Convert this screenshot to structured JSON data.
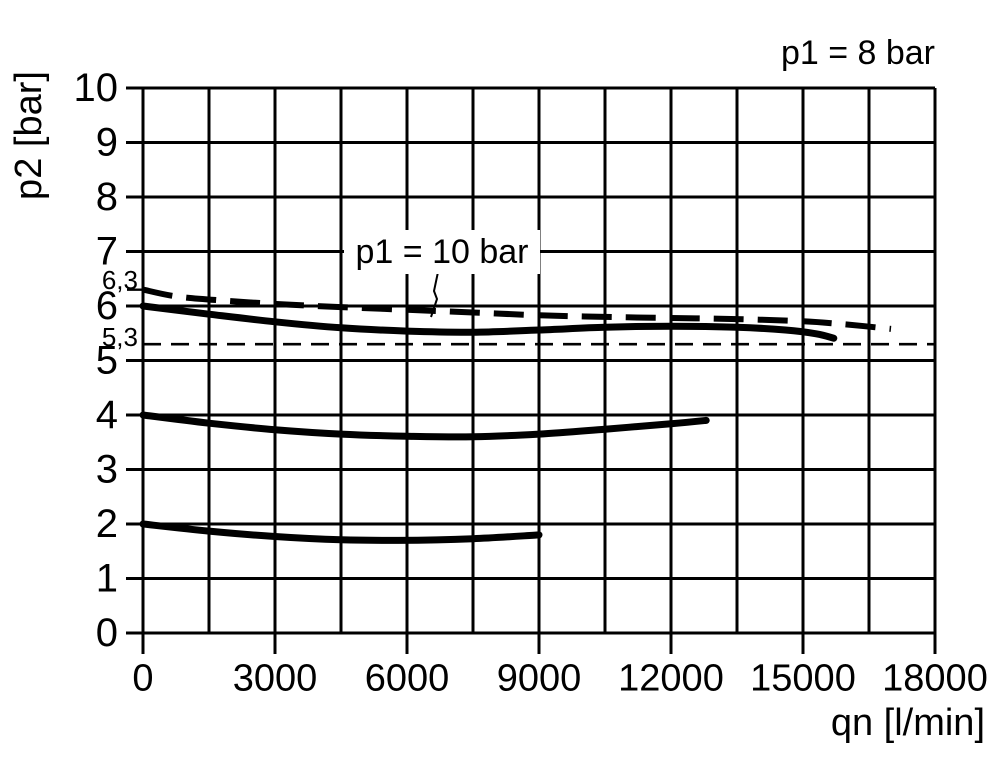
{
  "page": {
    "background": "#ffffff",
    "ink": "#000000"
  },
  "annotations": {
    "p1_8_bar": "p1 = 8 bar",
    "p1_10_bar": "p1 = 10 bar"
  },
  "chart_data": {
    "type": "line",
    "title": "",
    "xlabel": "qn [l/min]",
    "ylabel": "p2 [bar]",
    "xlim": [
      0,
      18000
    ],
    "ylim": [
      0,
      10
    ],
    "grid": "on",
    "legend_position": "none",
    "x_minor_step": 1500,
    "x_major_ticks": [
      0,
      3000,
      6000,
      9000,
      12000,
      15000,
      18000
    ],
    "x_tick_labels": [
      "0",
      "3000",
      "6000",
      "9000",
      "12000",
      "15000",
      "18000"
    ],
    "y_ticks": [
      0,
      1,
      2,
      3,
      4,
      5,
      6,
      7,
      8,
      9,
      10
    ],
    "y_tick_labels": [
      "0",
      "1",
      "2",
      "3",
      "4",
      "5",
      "6",
      "7",
      "8",
      "9",
      "10"
    ],
    "reference_lines": [
      {
        "y": 6.3,
        "label": "6,3",
        "style": "tick"
      },
      {
        "y": 5.3,
        "label": "5,3",
        "style": "dashed"
      }
    ],
    "series": [
      {
        "id": "dashed-p1-10bar",
        "name": "p1 = 10 bar",
        "style": "dashed",
        "x": [
          0,
          800,
          2000,
          3200,
          4500,
          6000,
          7500,
          9000,
          10500,
          12000,
          13500,
          15000,
          16000,
          17000
        ],
        "y": [
          6.3,
          6.17,
          6.09,
          6.03,
          5.98,
          5.93,
          5.88,
          5.83,
          5.8,
          5.78,
          5.76,
          5.72,
          5.66,
          5.58
        ]
      },
      {
        "id": "solid-6bar",
        "name": "p1 = 8 bar",
        "style": "solid",
        "x": [
          0,
          1500,
          3000,
          4500,
          6000,
          7500,
          9000,
          10500,
          12000,
          13500,
          14600,
          15300,
          15700
        ],
        "y": [
          6.0,
          5.85,
          5.71,
          5.6,
          5.54,
          5.52,
          5.56,
          5.61,
          5.63,
          5.61,
          5.56,
          5.49,
          5.41
        ]
      },
      {
        "id": "solid-4bar",
        "name": "",
        "style": "solid",
        "x": [
          0,
          1500,
          3000,
          4500,
          6000,
          7500,
          9000,
          10500,
          12000,
          12800
        ],
        "y": [
          4.0,
          3.85,
          3.73,
          3.65,
          3.61,
          3.6,
          3.65,
          3.74,
          3.84,
          3.9
        ]
      },
      {
        "id": "solid-2bar",
        "name": "",
        "style": "solid",
        "x": [
          0,
          1500,
          3000,
          4500,
          5800,
          7500,
          9000
        ],
        "y": [
          2.0,
          1.87,
          1.77,
          1.71,
          1.7,
          1.73,
          1.8
        ]
      }
    ]
  }
}
